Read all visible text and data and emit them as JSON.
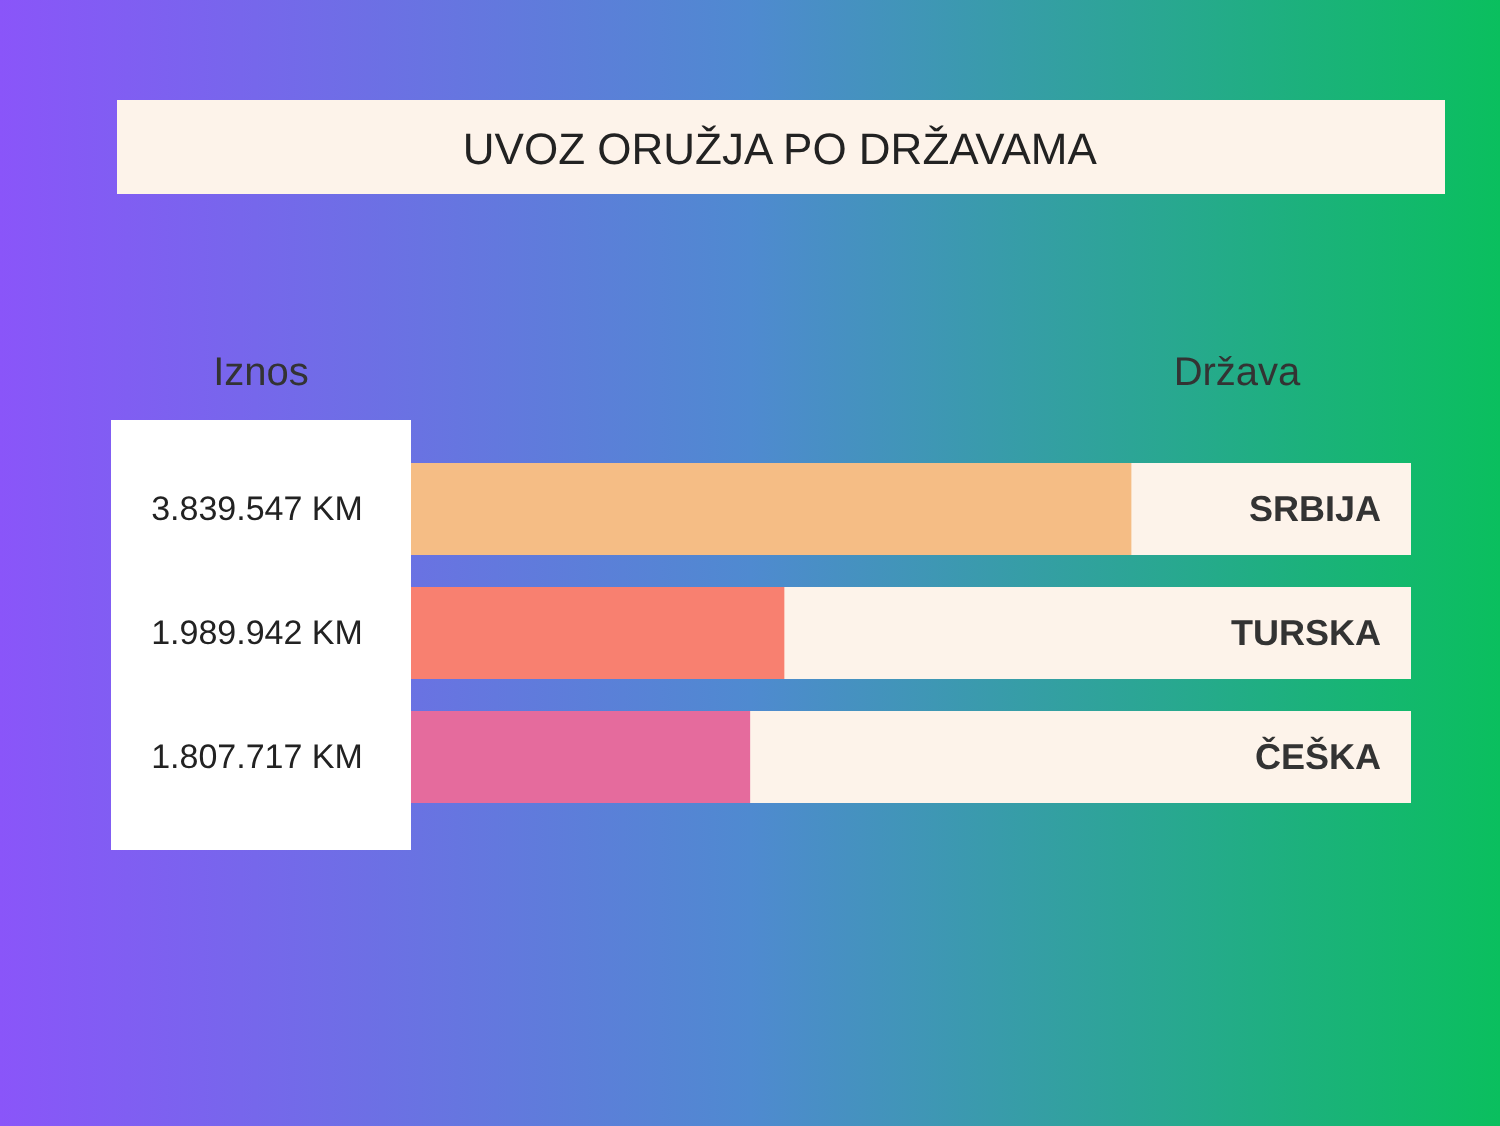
{
  "chart_data": {
    "type": "bar",
    "orientation": "horizontal",
    "title": "UVOZ ORUŽJA PO DRŽAVAMA",
    "categories": [
      "SRBIJA",
      "TURSKA",
      "ČEŠKA"
    ],
    "values": [
      3839547,
      1989942,
      1807717
    ],
    "colors": [
      "#f5bd85",
      "#f88070",
      "#e56b9d"
    ],
    "value_labels": [
      "3.839.547 KM",
      "1.989.942 KM",
      "1.807.717 KM"
    ],
    "annotations": [
      "Iznos",
      "Država"
    ],
    "xlim": [
      0,
      5330000
    ]
  }
}
